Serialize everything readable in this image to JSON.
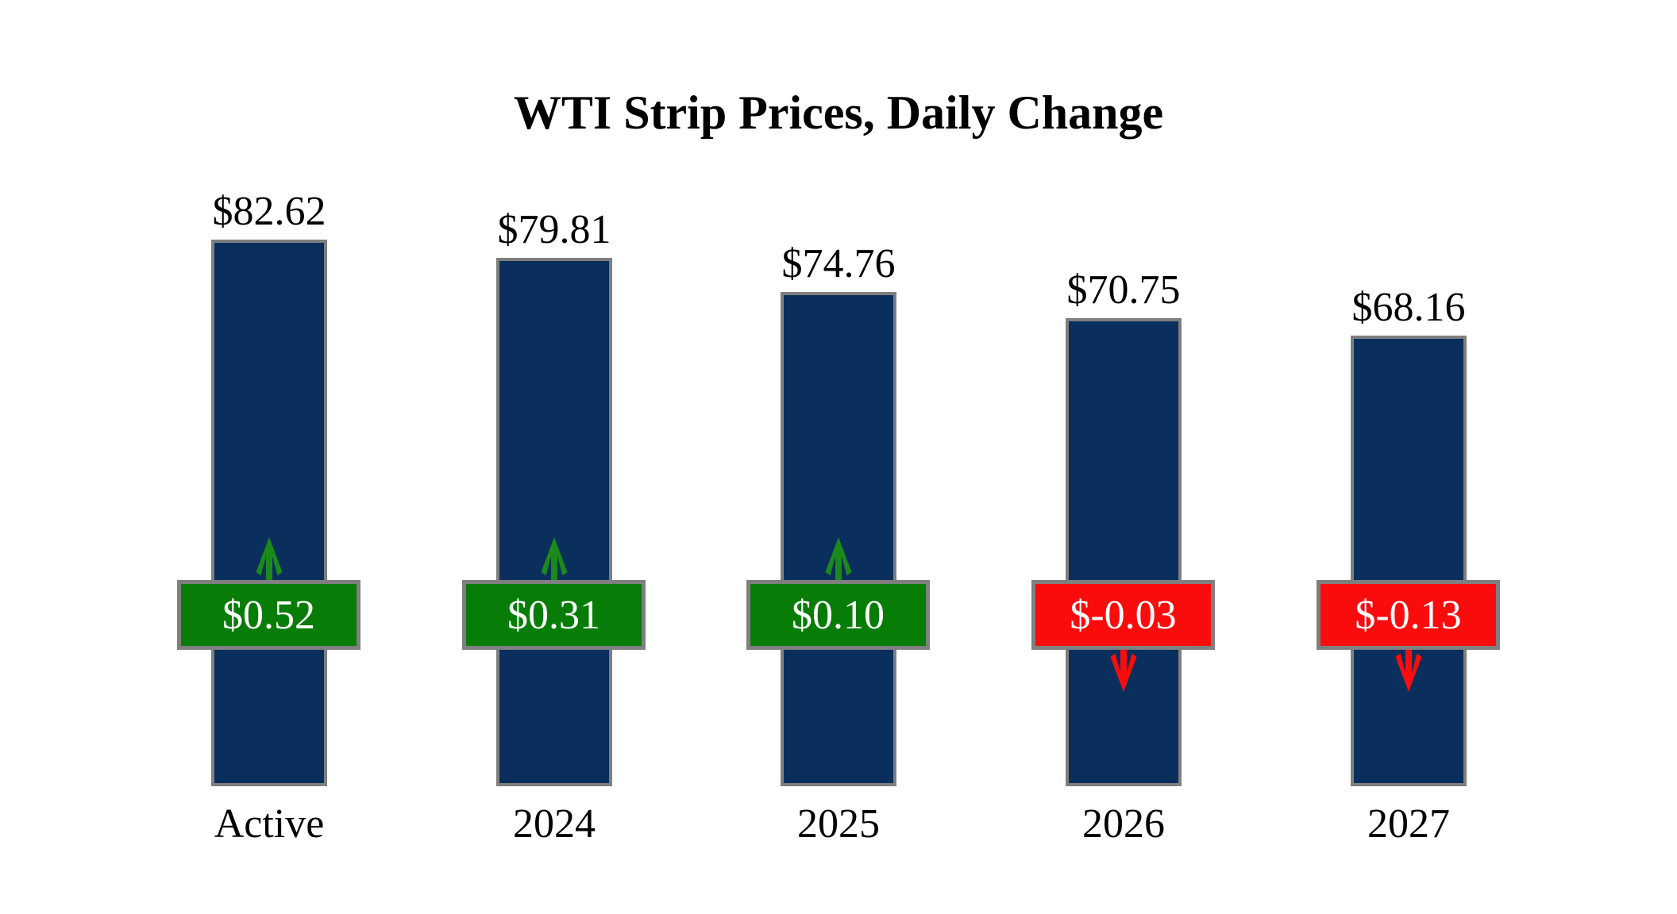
{
  "chart_data": {
    "type": "bar",
    "title": "WTI Strip Prices, Daily Change",
    "categories": [
      "Active",
      "2024",
      "2025",
      "2026",
      "2027"
    ],
    "series": [
      {
        "name": "WTI strip price",
        "values": [
          82.62,
          79.81,
          74.76,
          70.75,
          68.16
        ]
      },
      {
        "name": "Daily change",
        "values": [
          0.52,
          0.31,
          0.1,
          -0.03,
          -0.13
        ]
      }
    ],
    "points": [
      {
        "category": "Active",
        "price": 82.62,
        "price_label": "$82.62",
        "change": 0.52,
        "change_label": "$0.52",
        "direction": "up"
      },
      {
        "category": "2024",
        "price": 79.81,
        "price_label": "$79.81",
        "change": 0.31,
        "change_label": "$0.31",
        "direction": "up"
      },
      {
        "category": "2025",
        "price": 74.76,
        "price_label": "$74.76",
        "change": 0.1,
        "change_label": "$0.10",
        "direction": "up"
      },
      {
        "category": "2026",
        "price": 70.75,
        "price_label": "$70.75",
        "change": -0.03,
        "change_label": "$-0.03",
        "direction": "down"
      },
      {
        "category": "2027",
        "price": 68.16,
        "price_label": "$68.16",
        "change": -0.13,
        "change_label": "$-0.13",
        "direction": "down"
      }
    ],
    "ylim": [
      0,
      82.62
    ],
    "grid": false,
    "axes": "none",
    "legend": "none",
    "bar_value_labels_position": "above-bars",
    "change_badges_position": "overlay-band",
    "colors": {
      "bar": "#0A2F5C",
      "bar_border": "#7F7F7F",
      "positive": "#077D07",
      "positive_arrow": "#1B8A1B",
      "negative": "#FB0C0C",
      "negative_arrow": "#FB0C0C",
      "badge_border": "#7F7F7F",
      "change_text": "#FFFFFF",
      "label_text": "#000000",
      "background": "#FFFFFF"
    }
  }
}
